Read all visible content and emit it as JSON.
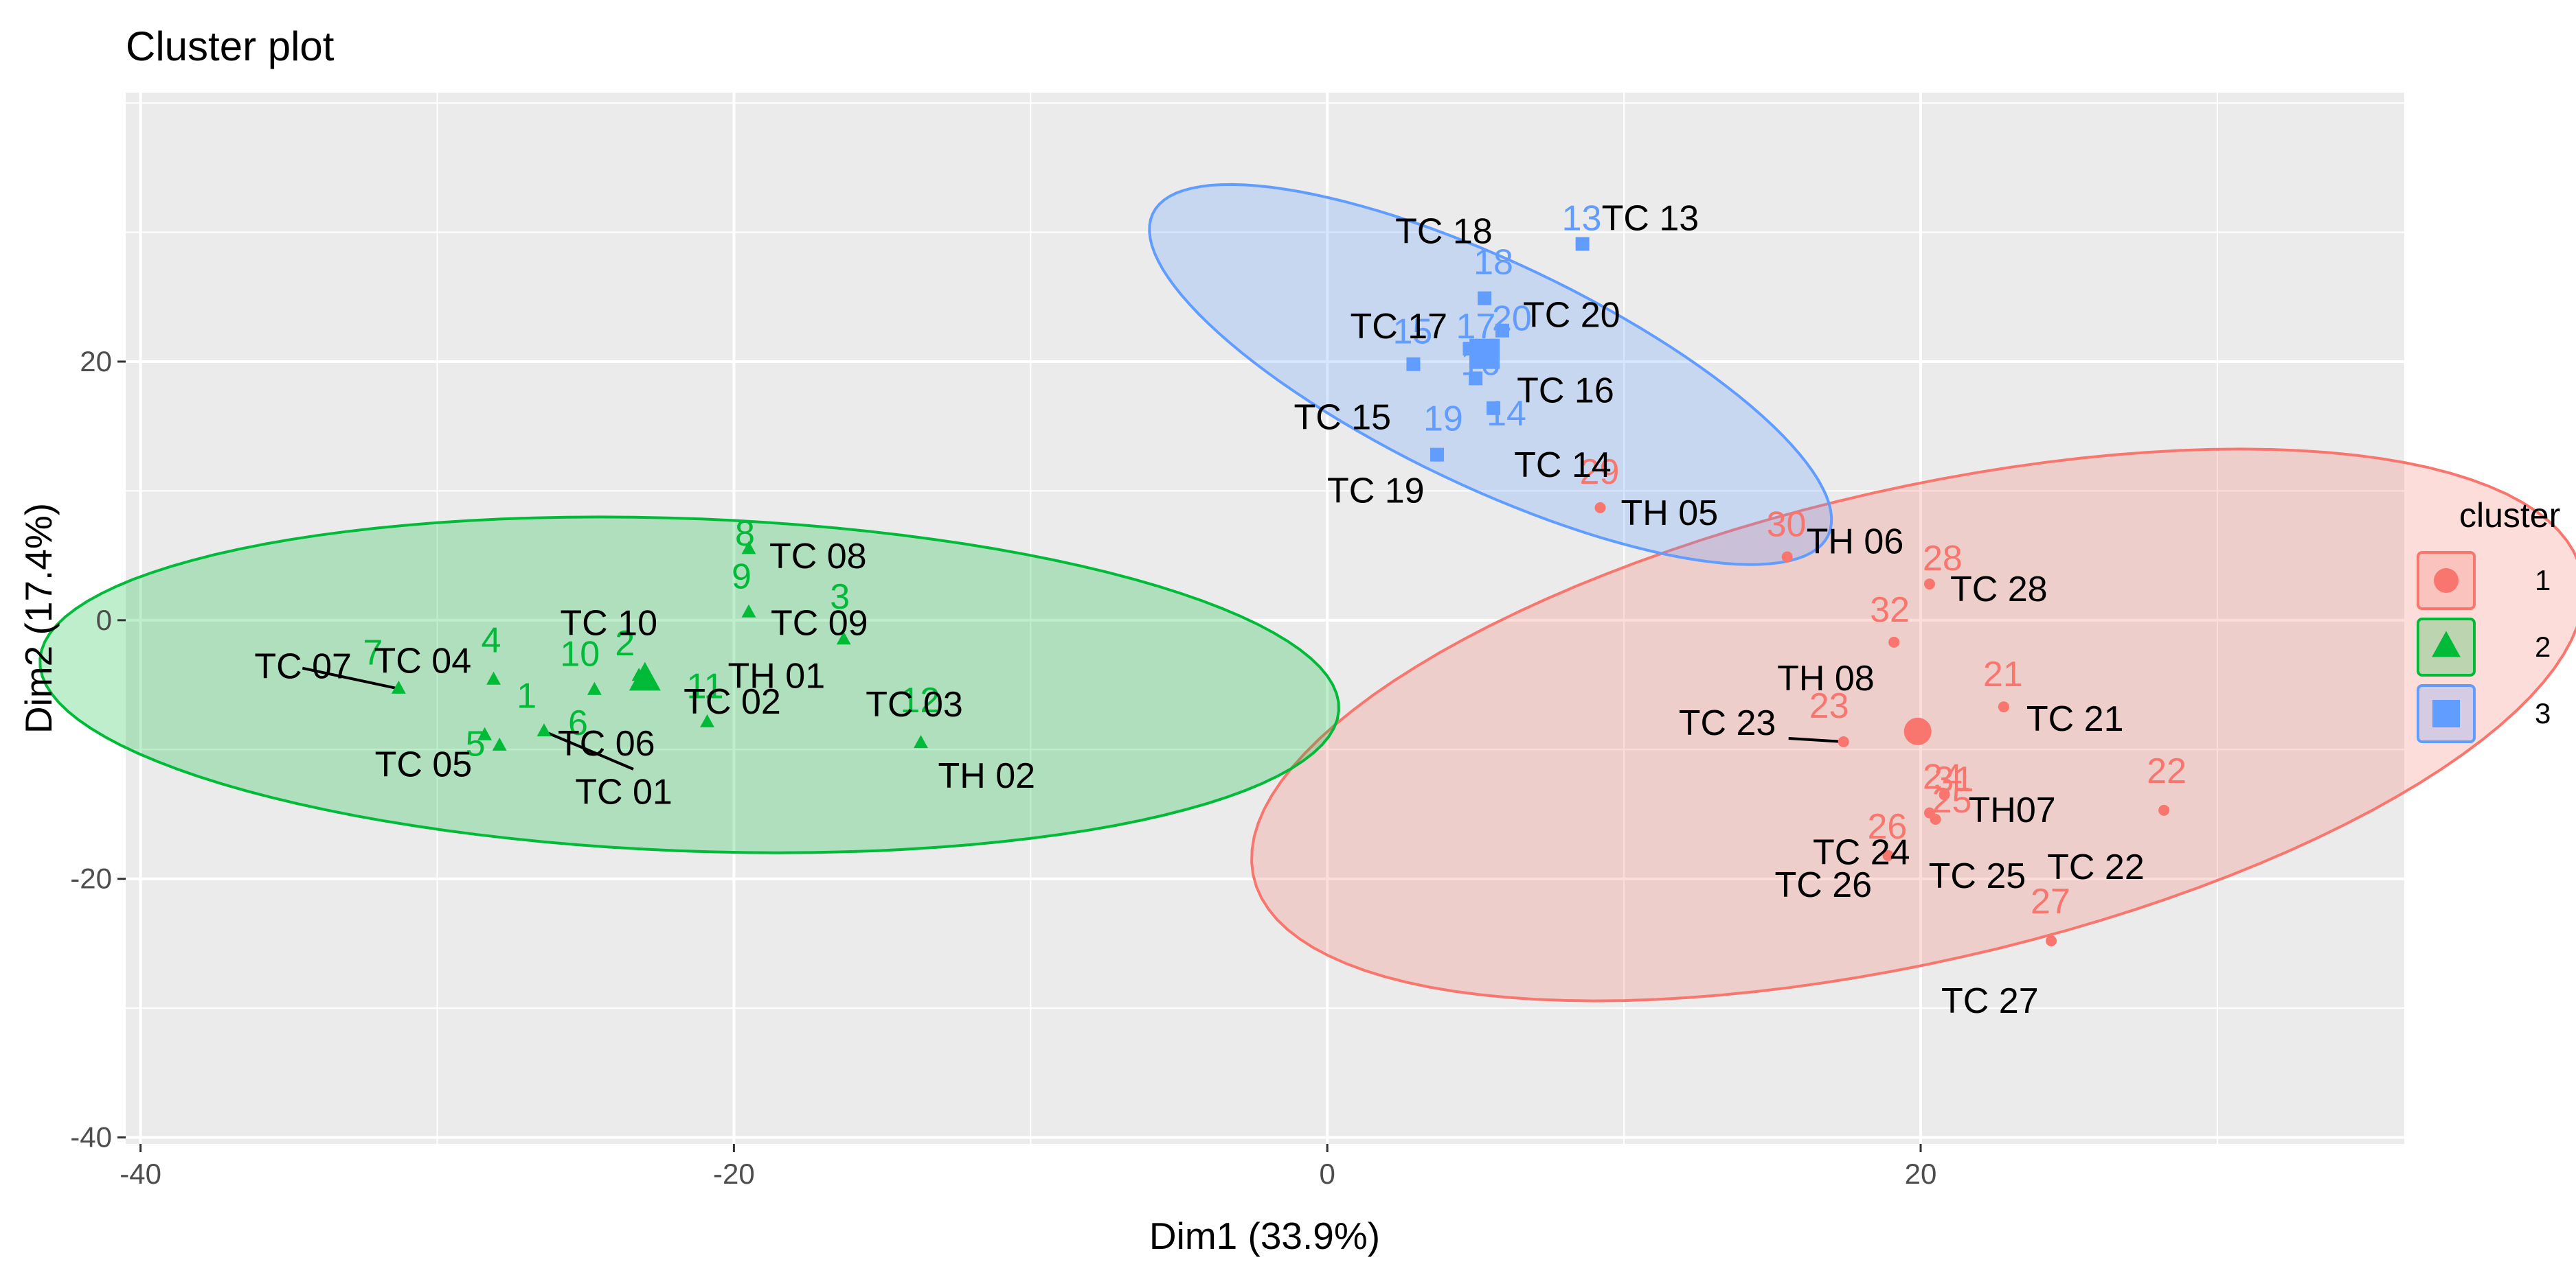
{
  "chart_data": {
    "type": "scatter",
    "title": "Cluster plot",
    "xlabel": "Dim1 (33.9%)",
    "ylabel": "Dim2 (17.4%)",
    "xlim": [
      -40.5,
      36.3
    ],
    "ylim": [
      -40.5,
      40.8
    ],
    "xticks": [
      -40,
      -20,
      0,
      20
    ],
    "xtick_labels": [
      "-40",
      "-20",
      "0",
      "20"
    ],
    "yticks": [
      -40,
      -20,
      0,
      20
    ],
    "ytick_labels": [
      "-40",
      "-20",
      "0",
      "20"
    ],
    "grid": true,
    "legend": {
      "title": "cluster",
      "position": "right",
      "entries": [
        {
          "label": "1",
          "color": "#F8766D",
          "shape": "circle"
        },
        {
          "label": "2",
          "color": "#00BA38",
          "shape": "triangle"
        },
        {
          "label": "3",
          "color": "#619CFF",
          "shape": "square"
        }
      ]
    },
    "clusters": [
      {
        "name": "1",
        "color": "#F8766D",
        "fill": "#F8766D",
        "shape": "circle",
        "center": [
          19.9,
          -8.6
        ],
        "ellipse": {
          "cx": 19.9,
          "cy": -8.1,
          "rx": 15.7,
          "ry": 26.7,
          "rotation_deg": -48
        },
        "points": [
          {
            "id": "21",
            "name": "TC 21",
            "x": 22.8,
            "y": -6.7
          },
          {
            "id": "22",
            "name": "TC 22",
            "x": 28.2,
            "y": -14.7
          },
          {
            "id": "23",
            "name": "TC 23",
            "x": 17.4,
            "y": -9.4
          },
          {
            "id": "24",
            "name": "TC 24",
            "x": 20.3,
            "y": -14.9
          },
          {
            "id": "25",
            "name": "TC 25",
            "x": 20.5,
            "y": -15.4
          },
          {
            "id": "26",
            "name": "TC 26",
            "x": 18.9,
            "y": -18.2
          },
          {
            "id": "27",
            "name": "TC 27",
            "x": 24.4,
            "y": -24.8
          },
          {
            "id": "28",
            "name": "TC 28",
            "x": 20.3,
            "y": 2.8
          },
          {
            "id": "29",
            "name": "TH 05",
            "x": 9.2,
            "y": 8.7
          },
          {
            "id": "30",
            "name": "TH 06",
            "x": 15.5,
            "y": 4.9
          },
          {
            "id": "31",
            "name": "TH07",
            "x": 20.8,
            "y": -13.5
          },
          {
            "id": "32",
            "name": "TH 08",
            "x": 19.1,
            "y": -1.7
          }
        ]
      },
      {
        "name": "2",
        "color": "#00BA38",
        "fill": "#00BA38",
        "shape": "triangle",
        "center": [
          -23.0,
          -4.6
        ],
        "ellipse": {
          "cx": -21.5,
          "cy": -5.0,
          "rx": 22.0,
          "ry": 12.8,
          "rotation_deg": -7
        },
        "points": [
          {
            "id": "1",
            "name": "TC 01",
            "x": -27.9,
            "y": -9.7
          },
          {
            "id": "2",
            "name": "TC 02",
            "x": -23.2,
            "y": -4.3
          },
          {
            "id": "3",
            "name": "TC 03",
            "x": -16.3,
            "y": -1.5
          },
          {
            "id": "4",
            "name": "TC 04",
            "x": -28.1,
            "y": -4.6
          },
          {
            "id": "5",
            "name": "TC 05",
            "x": -28.4,
            "y": -8.9
          },
          {
            "id": "6",
            "name": "TC 06",
            "x": -26.4,
            "y": -8.6
          },
          {
            "id": "7",
            "name": "TC 07",
            "x": -31.3,
            "y": -5.3
          },
          {
            "id": "8",
            "name": "TC 08",
            "x": -19.5,
            "y": 5.5
          },
          {
            "id": "9",
            "name": "TC 09",
            "x": -19.5,
            "y": 0.6
          },
          {
            "id": "10",
            "name": "TC 10",
            "x": -24.7,
            "y": -5.4
          },
          {
            "id": "11",
            "name": "TH 01",
            "x": -20.9,
            "y": -7.9
          },
          {
            "id": "12",
            "name": "TH 02",
            "x": -13.7,
            "y": -9.5
          }
        ]
      },
      {
        "name": "3",
        "color": "#619CFF",
        "fill": "#619CFF",
        "shape": "square",
        "center": [
          5.3,
          20.6
        ],
        "ellipse": {
          "cx": 5.5,
          "cy": 19.0,
          "rx": 6.2,
          "ry": 17.6,
          "rotation_deg": 36
        },
        "points": [
          {
            "id": "13",
            "name": "TC 13",
            "x": 8.6,
            "y": 29.1
          },
          {
            "id": "14",
            "name": "TC 14",
            "x": 5.6,
            "y": 16.4
          },
          {
            "id": "15",
            "name": "TC 15",
            "x": 2.9,
            "y": 19.8
          },
          {
            "id": "16",
            "name": "TC 16",
            "x": 5.0,
            "y": 18.7
          },
          {
            "id": "17",
            "name": "TC 17",
            "x": 4.8,
            "y": 21.0
          },
          {
            "id": "18",
            "name": "TC 18",
            "x": 5.3,
            "y": 24.9
          },
          {
            "id": "19",
            "name": "TC 19",
            "x": 3.7,
            "y": 12.8
          },
          {
            "id": "20",
            "name": "TC 20",
            "x": 5.9,
            "y": 22.4
          }
        ]
      }
    ]
  }
}
